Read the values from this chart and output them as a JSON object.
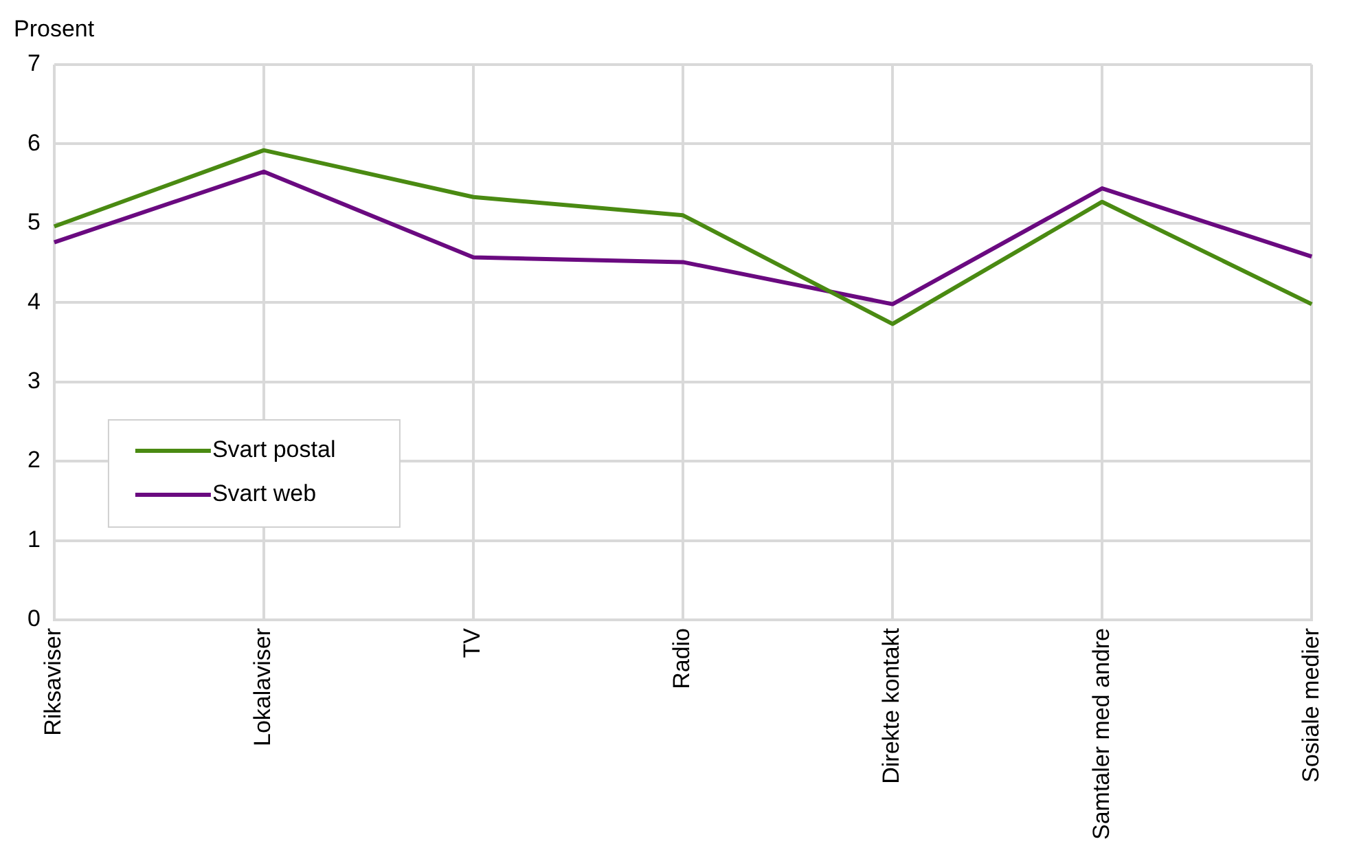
{
  "chart_data": {
    "type": "line",
    "ylabel": "Prosent",
    "categories": [
      "Riksaviser",
      "Lokalaviser",
      "TV",
      "Radio",
      "Direkte kontakt",
      "Samtaler med andre",
      "Sosiale medier"
    ],
    "series": [
      {
        "name": "Svart postal",
        "color": "#4a8a12",
        "values": [
          4.96,
          5.92,
          5.33,
          5.1,
          3.73,
          5.27,
          3.98
        ]
      },
      {
        "name": "Svart web",
        "color": "#6a0a80",
        "values": [
          4.76,
          5.65,
          4.57,
          4.51,
          3.98,
          5.44,
          4.58
        ]
      }
    ],
    "ylim": [
      0,
      7
    ],
    "yticks": [
      0,
      1,
      2,
      3,
      4,
      5,
      6,
      7
    ],
    "grid": true,
    "legend": "bottom left",
    "marker": "none",
    "line_style": "solid"
  }
}
